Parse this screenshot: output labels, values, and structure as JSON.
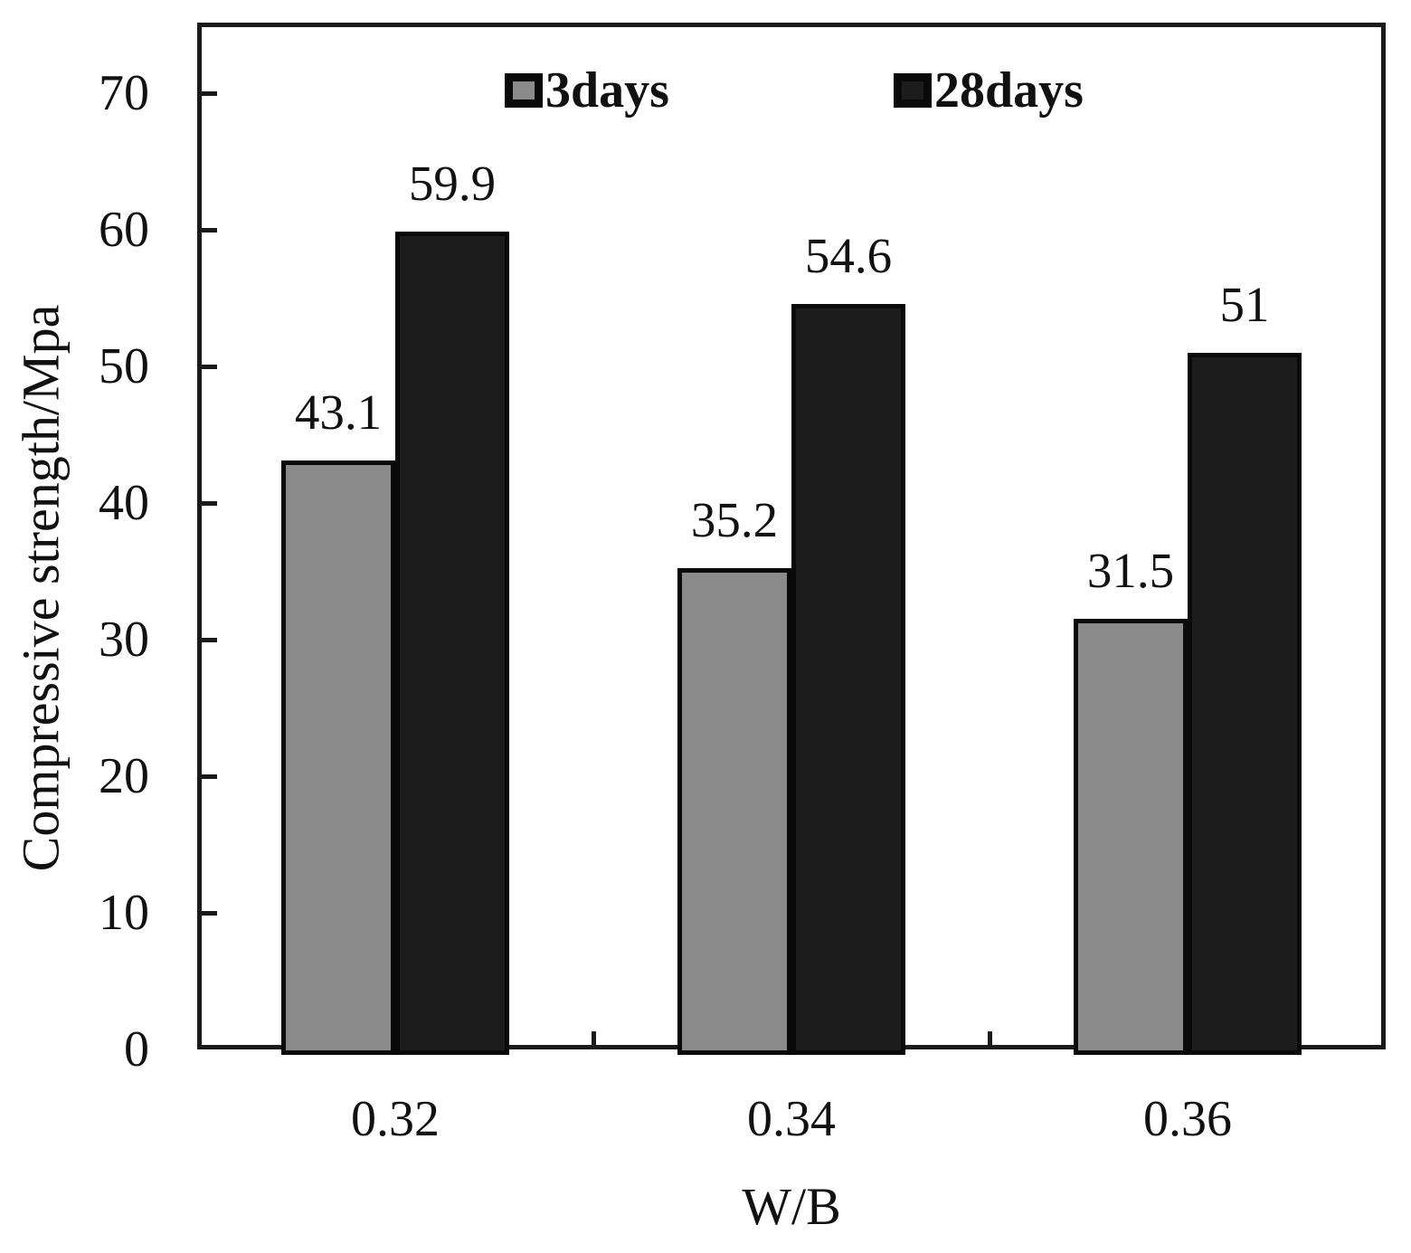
{
  "chart_data": {
    "type": "bar",
    "title": "",
    "xlabel": "W/B",
    "ylabel": "Compressive strength/Mpa",
    "categories": [
      "0.32",
      "0.34",
      "0.36"
    ],
    "series": [
      {
        "name": "3days",
        "color": "#8a8a8a",
        "values": [
          43.1,
          35.2,
          31.5
        ],
        "value_labels": [
          "43.1",
          "35.2",
          "31.5"
        ]
      },
      {
        "name": "28days",
        "color": "#1c1c1c",
        "values": [
          59.9,
          54.6,
          51
        ],
        "value_labels": [
          "59.9",
          "54.6",
          "51"
        ]
      }
    ],
    "ylim": [
      0,
      70
    ],
    "yticks": [
      0,
      10,
      20,
      30,
      40,
      50,
      60,
      70
    ],
    "ytick_labels": [
      "0",
      "10",
      "20",
      "30",
      "40",
      "50",
      "60",
      "70"
    ],
    "grid": false,
    "legend_position": "top-inside",
    "bar_edge_color": "#0a0a0a",
    "frame_color": "#1a1a1a",
    "background_color": "#ffffff"
  }
}
